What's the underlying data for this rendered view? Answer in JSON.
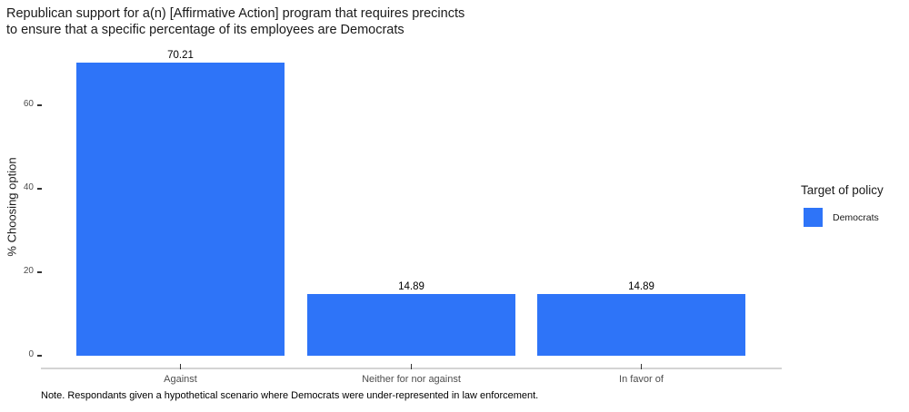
{
  "chart_data": {
    "type": "bar",
    "title": "Republican support for a(n) [Affirmative Action] program that requires precincts to ensure that a specific percentage of its employees are Democrats",
    "title_lines": [
      "Republican support for a(n) [Affirmative Action] program that requires precincts",
      "to ensure that a specific percentage of its employees are Democrats"
    ],
    "xlabel": "",
    "ylabel": "% Choosing option",
    "categories": [
      "Against",
      "Neither for nor against",
      "In favor of"
    ],
    "values": [
      70.21,
      14.89,
      14.89
    ],
    "value_labels": [
      "70.21",
      "14.89",
      "14.89"
    ],
    "yticks": [
      0,
      20,
      40,
      60
    ],
    "ytick_labels": [
      "0",
      "20",
      "40",
      "60"
    ],
    "ylim": [
      0,
      72
    ],
    "grid": false,
    "legend": {
      "title": "Target of policy",
      "position": "right",
      "items": [
        {
          "label": "Democrats",
          "color": "#2E74F8"
        }
      ]
    },
    "note": "Note. Respondants given a hypothetical scenario where Democrats were under-represented in law enforcement.",
    "colors": {
      "bar": "#2E74F8",
      "axis_line": "#D4D4D4",
      "tick": "#333333",
      "axis_text": "#4D4D4D",
      "text": "#000000"
    }
  }
}
